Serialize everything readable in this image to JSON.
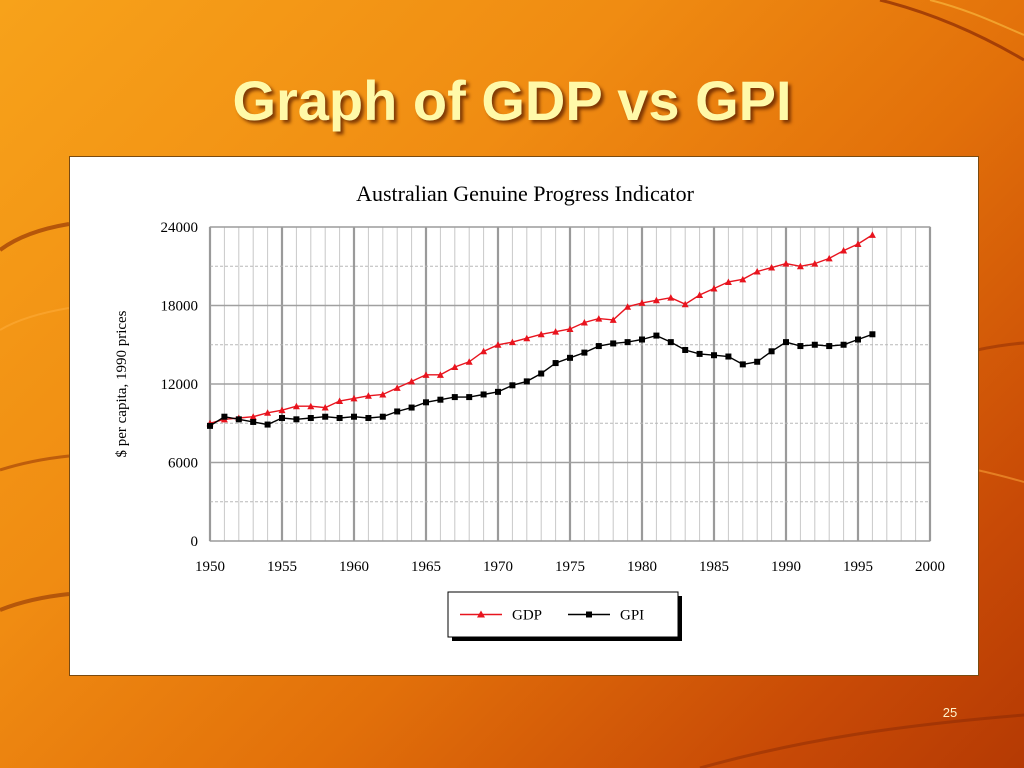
{
  "slide": {
    "title": "Graph of GDP vs GPI",
    "page_number": "25"
  },
  "colors": {
    "gdp": "#e8141e",
    "gpi": "#000000",
    "title_text": "#fff9a8"
  },
  "chart_data": {
    "type": "line",
    "title": "Australian Genuine Progress Indicator",
    "xlabel": "",
    "ylabel": "$ per capita, 1990 prices",
    "xlim": [
      1950,
      2000
    ],
    "ylim": [
      0,
      24000
    ],
    "x_ticks": [
      1950,
      1955,
      1960,
      1965,
      1970,
      1975,
      1980,
      1985,
      1990,
      1995,
      2000
    ],
    "y_ticks": [
      0,
      6000,
      12000,
      18000,
      24000
    ],
    "grid": true,
    "legend_position": "bottom-center",
    "series": [
      {
        "name": "GDP",
        "marker": "triangle",
        "color": "#e8141e",
        "x": [
          1950,
          1951,
          1952,
          1953,
          1954,
          1955,
          1956,
          1957,
          1958,
          1959,
          1960,
          1961,
          1962,
          1963,
          1964,
          1965,
          1966,
          1967,
          1968,
          1969,
          1970,
          1971,
          1972,
          1973,
          1974,
          1975,
          1976,
          1977,
          1978,
          1979,
          1980,
          1981,
          1982,
          1983,
          1984,
          1985,
          1986,
          1987,
          1988,
          1989,
          1990,
          1991,
          1992,
          1993,
          1994,
          1995,
          1996
        ],
        "y": [
          9000,
          9300,
          9400,
          9500,
          9800,
          10000,
          10300,
          10300,
          10200,
          10700,
          10900,
          11100,
          11200,
          11700,
          12200,
          12700,
          12700,
          13300,
          13700,
          14500,
          15000,
          15200,
          15500,
          15800,
          16000,
          16200,
          16700,
          17000,
          16900,
          17900,
          18200,
          18400,
          18600,
          18100,
          18800,
          19300,
          19800,
          20000,
          20600,
          20900,
          21200,
          21000,
          21200,
          21600,
          22200,
          22700,
          23400
        ]
      },
      {
        "name": "GPI",
        "marker": "square",
        "color": "#000000",
        "x": [
          1950,
          1951,
          1952,
          1953,
          1954,
          1955,
          1956,
          1957,
          1958,
          1959,
          1960,
          1961,
          1962,
          1963,
          1964,
          1965,
          1966,
          1967,
          1968,
          1969,
          1970,
          1971,
          1972,
          1973,
          1974,
          1975,
          1976,
          1977,
          1978,
          1979,
          1980,
          1981,
          1982,
          1983,
          1984,
          1985,
          1986,
          1987,
          1988,
          1989,
          1990,
          1991,
          1992,
          1993,
          1994,
          1995,
          1996
        ],
        "y": [
          8800,
          9500,
          9300,
          9100,
          8900,
          9400,
          9300,
          9400,
          9500,
          9400,
          9500,
          9400,
          9500,
          9900,
          10200,
          10600,
          10800,
          11000,
          11000,
          11200,
          11400,
          11900,
          12200,
          12800,
          13600,
          14000,
          14400,
          14900,
          15100,
          15200,
          15400,
          15700,
          15200,
          14600,
          14300,
          14200,
          14100,
          13500,
          13700,
          14500,
          15200,
          14900,
          15000,
          14900,
          15000,
          15400,
          15800
        ]
      }
    ]
  }
}
